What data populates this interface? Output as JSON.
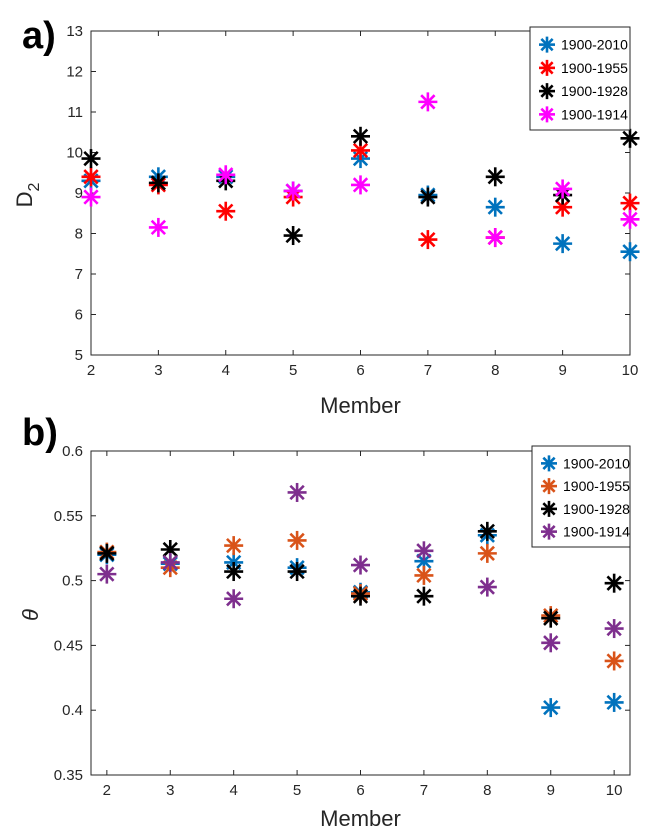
{
  "chart_data": [
    {
      "type": "scatter",
      "panel_label": "a)",
      "marker": "asterisk",
      "xlabel": "Member",
      "ylabel_main": "D",
      "ylabel_sub": "2",
      "xlim": [
        2,
        10
      ],
      "ylim": [
        5,
        13
      ],
      "xticks": [
        2,
        3,
        4,
        5,
        6,
        7,
        8,
        9,
        10
      ],
      "yticks": [
        5,
        6,
        7,
        8,
        9,
        10,
        11,
        12,
        13
      ],
      "grid": false,
      "legend_position": "top-right",
      "series": [
        {
          "name": "1900-2010",
          "color": "#0072BD",
          "x": [
            2,
            3,
            4,
            5,
            6,
            7,
            8,
            9,
            10
          ],
          "y": [
            9.3,
            9.4,
            9.4,
            9.05,
            9.85,
            8.95,
            8.65,
            7.75,
            7.55
          ]
        },
        {
          "name": "1900-1955",
          "color": "#FF0000",
          "x": [
            2,
            3,
            4,
            5,
            6,
            7,
            8,
            9,
            10
          ],
          "y": [
            9.4,
            9.2,
            8.55,
            8.9,
            10.05,
            7.85,
            7.9,
            8.65,
            8.75
          ]
        },
        {
          "name": "1900-1928",
          "color": "#000000",
          "x": [
            2,
            3,
            4,
            5,
            6,
            7,
            8,
            9,
            10
          ],
          "y": [
            9.85,
            9.25,
            9.3,
            7.95,
            10.4,
            8.9,
            9.4,
            8.95,
            10.35
          ]
        },
        {
          "name": "1900-1914",
          "color": "#FF00FF",
          "x": [
            2,
            3,
            4,
            5,
            6,
            7,
            8,
            9,
            10
          ],
          "y": [
            8.9,
            8.15,
            9.45,
            9.05,
            9.2,
            11.25,
            7.9,
            9.1,
            8.35
          ]
        }
      ]
    },
    {
      "type": "scatter",
      "panel_label": "b)",
      "marker": "asterisk",
      "xlabel": "Member",
      "ylabel_main": "θ",
      "ylabel_sub": "",
      "xlim": [
        1.75,
        10.25
      ],
      "ylim": [
        0.35,
        0.6
      ],
      "xticks": [
        2,
        3,
        4,
        5,
        6,
        7,
        8,
        9,
        10
      ],
      "yticks": [
        0.35,
        0.4,
        0.45,
        0.5,
        0.55,
        0.6
      ],
      "ytick_labels": [
        "0.35",
        "0.4",
        "0.45",
        "0.5",
        "0.55",
        "0.6"
      ],
      "grid": false,
      "legend_position": "top-right",
      "series": [
        {
          "name": "1900-2010",
          "color": "#0072BD",
          "x": [
            2,
            3,
            4,
            5,
            6,
            7,
            8,
            9,
            10
          ],
          "y": [
            0.52,
            0.513,
            0.514,
            0.51,
            0.491,
            0.515,
            0.535,
            0.402,
            0.406
          ]
        },
        {
          "name": "1900-1955",
          "color": "#D95319",
          "x": [
            2,
            3,
            4,
            5,
            6,
            7,
            8,
            9,
            10
          ],
          "y": [
            0.522,
            0.51,
            0.527,
            0.531,
            0.49,
            0.504,
            0.521,
            0.473,
            0.438
          ]
        },
        {
          "name": "1900-1928",
          "color": "#000000",
          "x": [
            2,
            3,
            4,
            5,
            6,
            7,
            8,
            9,
            10
          ],
          "y": [
            0.521,
            0.524,
            0.507,
            0.507,
            0.488,
            0.488,
            0.538,
            0.471,
            0.498
          ]
        },
        {
          "name": "1900-1914",
          "color": "#7E2F8E",
          "x": [
            2,
            3,
            4,
            5,
            6,
            7,
            8,
            9,
            10
          ],
          "y": [
            0.505,
            0.514,
            0.486,
            0.568,
            0.512,
            0.523,
            0.495,
            0.452,
            0.463
          ]
        }
      ]
    }
  ]
}
